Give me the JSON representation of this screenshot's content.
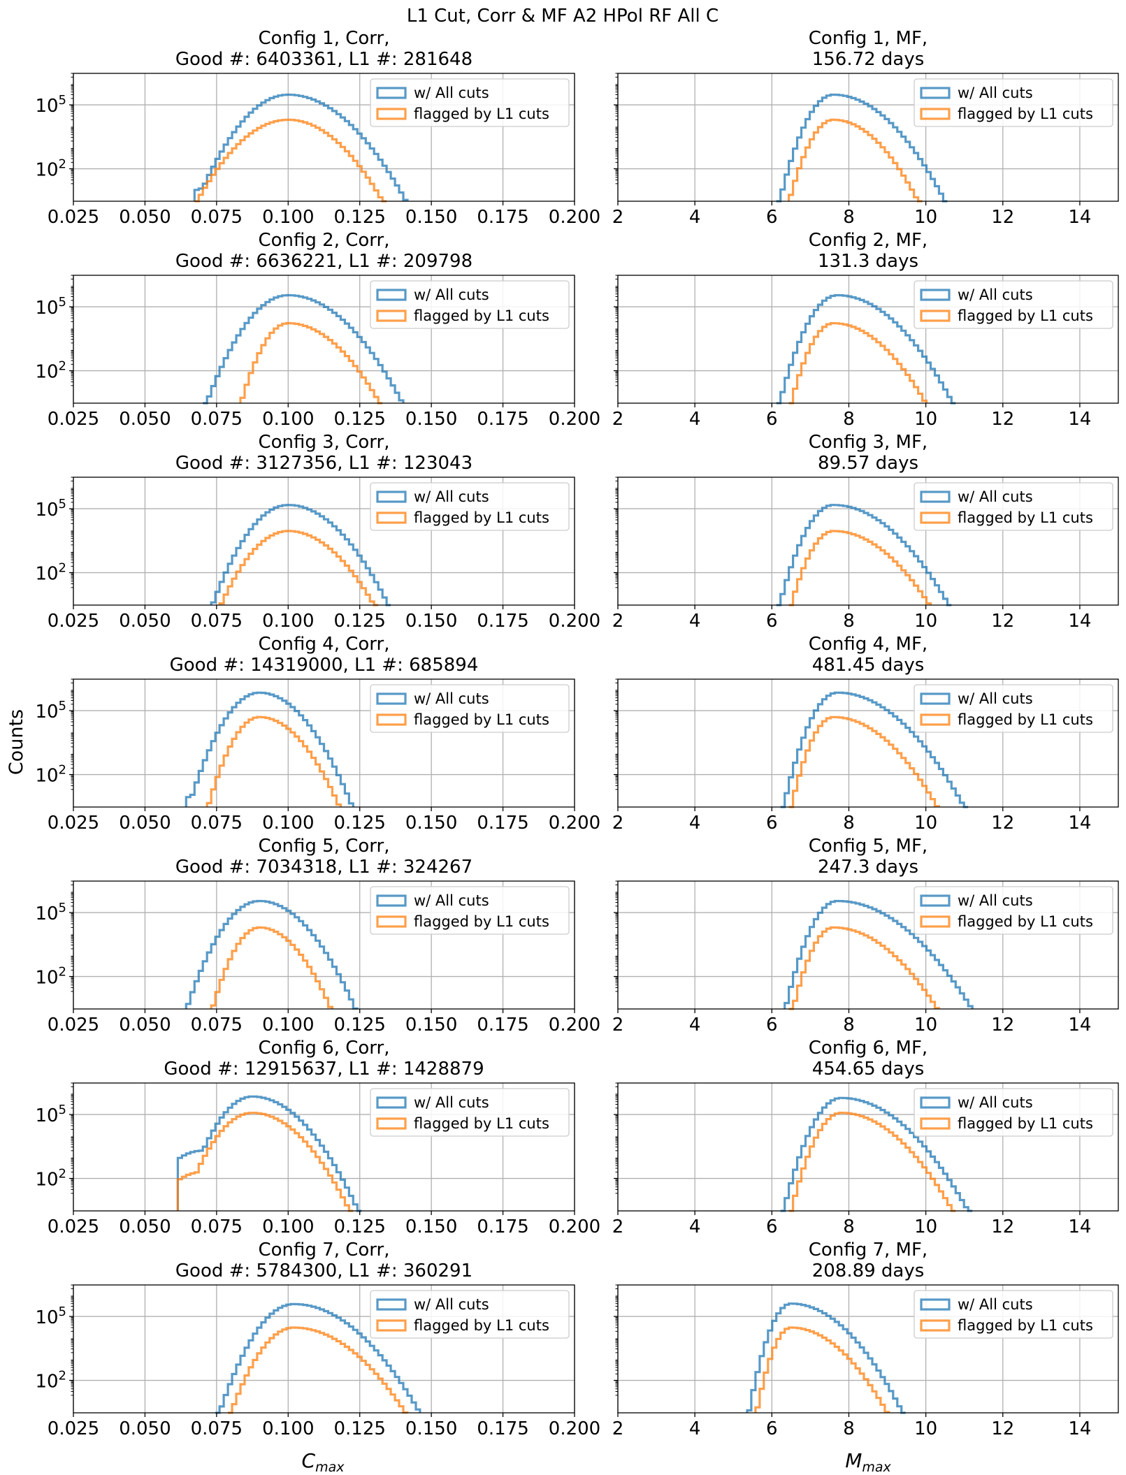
{
  "figure_title": "L1 Cut, Corr & MF A2 HPol RF All C",
  "ylabel": "Counts",
  "xlabel_left": "C",
  "xlabel_left_sub": "max",
  "xlabel_right": "M",
  "xlabel_right_sub": "max",
  "legend": [
    "w/ All cuts",
    "flagged by L1 cuts"
  ],
  "colors": {
    "all": "#1f77b4",
    "l1": "#ff7f0e"
  },
  "chart_data": [
    {
      "type": "histogram",
      "col": "corr",
      "title_line1": "Config 1, Corr,",
      "title_line2": "Good #: 6403361, L1 #: 281648",
      "xlim": [
        0.025,
        0.2
      ],
      "xticks": [
        "0.025",
        "0.050",
        "0.075",
        "0.100",
        "0.125",
        "0.150",
        "0.175",
        "0.200"
      ],
      "yscale": "log",
      "yticks": [
        "10^2",
        "10^5"
      ],
      "ylim": [
        3,
        3000000
      ],
      "grid": true,
      "legend": "upper right",
      "series": [
        {
          "name": "w/ All cuts",
          "start": 0.0682,
          "end": 0.1412,
          "peak_x": 0.1,
          "peak": 300000,
          "bump": {
            "x": 0.075,
            "v": 15
          }
        },
        {
          "name": "flagged by L1 cuts",
          "start": 0.0682,
          "end": 0.133,
          "peak_x": 0.1,
          "peak": 20000
        }
      ]
    },
    {
      "type": "histogram",
      "col": "mf",
      "title_line1": "Config 1, MF,",
      "title_line2": "156.72 days",
      "xlim": [
        2,
        15
      ],
      "xticks": [
        "2",
        "4",
        "6",
        "8",
        "10",
        "12",
        "14"
      ],
      "yscale": "log",
      "ylim": [
        3,
        3000000
      ],
      "grid": true,
      "legend": "upper right",
      "series": [
        {
          "name": "w/ All cuts",
          "start": 6.2,
          "end": 10.5,
          "peak_x": 7.6,
          "peak": 300000
        },
        {
          "name": "flagged by L1 cuts",
          "start": 6.45,
          "end": 9.8,
          "peak_x": 7.6,
          "peak": 20000
        }
      ]
    },
    {
      "type": "histogram",
      "col": "corr",
      "title_line1": "Config 2, Corr,",
      "title_line2": "Good #: 6636221, L1 #: 209798",
      "xlim": [
        0.025,
        0.2
      ],
      "xticks": [
        "0.025",
        "0.050",
        "0.075",
        "0.100",
        "0.125",
        "0.150",
        "0.175",
        "0.200"
      ],
      "yscale": "log",
      "yticks": [
        "10^2",
        "10^5"
      ],
      "ylim": [
        3,
        3000000
      ],
      "grid": true,
      "legend": "upper right",
      "series": [
        {
          "name": "w/ All cuts",
          "start": 0.0715,
          "end": 0.14,
          "peak_x": 0.1,
          "peak": 350000
        },
        {
          "name": "flagged by L1 cuts",
          "start": 0.0835,
          "end": 0.132,
          "peak_x": 0.1,
          "peak": 17000
        }
      ]
    },
    {
      "type": "histogram",
      "col": "mf",
      "title_line1": "Config 2, MF,",
      "title_line2": "131.3 days",
      "xlim": [
        2,
        15
      ],
      "xticks": [
        "2",
        "4",
        "6",
        "8",
        "10",
        "12",
        "14"
      ],
      "yscale": "log",
      "ylim": [
        3,
        3000000
      ],
      "grid": true,
      "legend": "upper right",
      "series": [
        {
          "name": "w/ All cuts",
          "start": 6.2,
          "end": 10.7,
          "peak_x": 7.7,
          "peak": 350000
        },
        {
          "name": "flagged by L1 cuts",
          "start": 6.5,
          "end": 10.0,
          "peak_x": 7.6,
          "peak": 17000
        }
      ]
    },
    {
      "type": "histogram",
      "col": "corr",
      "title_line1": "Config 3, Corr,",
      "title_line2": "Good #: 3127356, L1 #: 123043",
      "xlim": [
        0.025,
        0.2
      ],
      "xticks": [
        "0.025",
        "0.050",
        "0.075",
        "0.100",
        "0.125",
        "0.150",
        "0.175",
        "0.200"
      ],
      "yscale": "log",
      "yticks": [
        "10^2",
        "10^5"
      ],
      "ylim": [
        3,
        3000000
      ],
      "grid": true,
      "legend": "upper right",
      "series": [
        {
          "name": "w/ All cuts",
          "start": 0.0735,
          "end": 0.135,
          "peak_x": 0.1,
          "peak": 150000
        },
        {
          "name": "flagged by L1 cuts",
          "start": 0.0765,
          "end": 0.13,
          "peak_x": 0.1,
          "peak": 9000
        }
      ]
    },
    {
      "type": "histogram",
      "col": "mf",
      "title_line1": "Config 3, MF,",
      "title_line2": "89.57 days",
      "xlim": [
        2,
        15
      ],
      "xticks": [
        "2",
        "4",
        "6",
        "8",
        "10",
        "12",
        "14"
      ],
      "yscale": "log",
      "ylim": [
        3,
        3000000
      ],
      "grid": true,
      "legend": "upper right",
      "series": [
        {
          "name": "w/ All cuts",
          "start": 6.2,
          "end": 10.6,
          "peak_x": 7.6,
          "peak": 150000
        },
        {
          "name": "flagged by L1 cuts",
          "start": 6.5,
          "end": 10.1,
          "peak_x": 7.6,
          "peak": 9000
        }
      ]
    },
    {
      "type": "histogram",
      "col": "corr",
      "title_line1": "Config 4, Corr,",
      "title_line2": "Good #: 14319000, L1 #: 685894",
      "xlim": [
        0.025,
        0.2
      ],
      "xticks": [
        "0.025",
        "0.050",
        "0.075",
        "0.100",
        "0.125",
        "0.150",
        "0.175",
        "0.200"
      ],
      "yscale": "log",
      "yticks": [
        "10^2",
        "10^5"
      ],
      "ylim": [
        3,
        3000000
      ],
      "grid": true,
      "legend": "upper right",
      "series": [
        {
          "name": "w/ All cuts",
          "start": 0.0652,
          "end": 0.1225,
          "peak_x": 0.09,
          "peak": 700000,
          "bump": {
            "x": 0.07,
            "v": 12
          }
        },
        {
          "name": "flagged by L1 cuts",
          "start": 0.072,
          "end": 0.118,
          "peak_x": 0.09,
          "peak": 50000
        }
      ]
    },
    {
      "type": "histogram",
      "col": "mf",
      "title_line1": "Config 4, MF,",
      "title_line2": "481.45 days",
      "xlim": [
        2,
        15
      ],
      "xticks": [
        "2",
        "4",
        "6",
        "8",
        "10",
        "12",
        "14"
      ],
      "yscale": "log",
      "ylim": [
        3,
        3000000
      ],
      "grid": true,
      "legend": "upper right",
      "series": [
        {
          "name": "w/ All cuts",
          "start": 6.3,
          "end": 11.0,
          "peak_x": 7.7,
          "peak": 700000
        },
        {
          "name": "flagged by L1 cuts",
          "start": 6.5,
          "end": 10.3,
          "peak_x": 7.6,
          "peak": 50000
        }
      ]
    },
    {
      "type": "histogram",
      "col": "corr",
      "title_line1": "Config 5, Corr,",
      "title_line2": "Good #: 7034318, L1 #: 324267",
      "xlim": [
        0.025,
        0.2
      ],
      "xticks": [
        "0.025",
        "0.050",
        "0.075",
        "0.100",
        "0.125",
        "0.150",
        "0.175",
        "0.200"
      ],
      "yscale": "log",
      "yticks": [
        "10^2",
        "10^5"
      ],
      "ylim": [
        3,
        3000000
      ],
      "grid": true,
      "legend": "upper right",
      "series": [
        {
          "name": "w/ All cuts",
          "start": 0.0645,
          "end": 0.1235,
          "peak_x": 0.09,
          "peak": 350000
        },
        {
          "name": "flagged by L1 cuts",
          "start": 0.0735,
          "end": 0.115,
          "peak_x": 0.09,
          "peak": 20000
        }
      ]
    },
    {
      "type": "histogram",
      "col": "mf",
      "title_line1": "Config 5, MF,",
      "title_line2": "247.3 days",
      "xlim": [
        2,
        15
      ],
      "xticks": [
        "2",
        "4",
        "6",
        "8",
        "10",
        "12",
        "14"
      ],
      "yscale": "log",
      "ylim": [
        3,
        3000000
      ],
      "grid": true,
      "legend": "upper right",
      "series": [
        {
          "name": "w/ All cuts",
          "start": 6.35,
          "end": 11.2,
          "peak_x": 7.7,
          "peak": 350000
        },
        {
          "name": "flagged by L1 cuts",
          "start": 6.55,
          "end": 10.3,
          "peak_x": 7.6,
          "peak": 20000
        }
      ]
    },
    {
      "type": "histogram",
      "col": "corr",
      "title_line1": "Config 6, Corr,",
      "title_line2": "Good #: 12915637, L1 #: 1428879",
      "xlim": [
        0.025,
        0.2
      ],
      "xticks": [
        "0.025",
        "0.050",
        "0.075",
        "0.100",
        "0.125",
        "0.150",
        "0.175",
        "0.200"
      ],
      "yscale": "log",
      "yticks": [
        "10^2",
        "10^5"
      ],
      "ylim": [
        3,
        3000000
      ],
      "grid": true,
      "legend": "upper right",
      "series": [
        {
          "name": "w/ All cuts",
          "start": 0.0625,
          "end": 0.1245,
          "peak_x": 0.0875,
          "peak": 700000,
          "bump": {
            "x": 0.07,
            "v": 2000
          }
        },
        {
          "name": "flagged by L1 cuts",
          "start": 0.0625,
          "end": 0.1215,
          "peak_x": 0.0875,
          "peak": 120000,
          "bump": {
            "x": 0.07,
            "v": 200
          }
        }
      ]
    },
    {
      "type": "histogram",
      "col": "mf",
      "title_line1": "Config 6, MF,",
      "title_line2": "454.65 days",
      "xlim": [
        2,
        15
      ],
      "xticks": [
        "2",
        "4",
        "6",
        "8",
        "10",
        "12",
        "14"
      ],
      "yscale": "log",
      "ylim": [
        3,
        3000000
      ],
      "grid": true,
      "legend": "upper right",
      "series": [
        {
          "name": "w/ All cuts",
          "start": 6.3,
          "end": 11.1,
          "peak_x": 7.8,
          "peak": 600000
        },
        {
          "name": "flagged by L1 cuts",
          "start": 6.5,
          "end": 10.7,
          "peak_x": 7.8,
          "peak": 120000
        }
      ]
    },
    {
      "type": "histogram",
      "col": "corr",
      "title_line1": "Config 7, Corr,",
      "title_line2": "Good #: 5784300, L1 #: 360291",
      "xlim": [
        0.025,
        0.2
      ],
      "xticks": [
        "0.025",
        "0.050",
        "0.075",
        "0.100",
        "0.125",
        "0.150",
        "0.175",
        "0.200"
      ],
      "yscale": "log",
      "yticks": [
        "10^2",
        "10^5"
      ],
      "ylim": [
        3,
        3000000
      ],
      "grid": true,
      "legend": "upper right",
      "series": [
        {
          "name": "w/ All cuts",
          "start": 0.076,
          "end": 0.146,
          "peak_x": 0.102,
          "peak": 380000
        },
        {
          "name": "flagged by L1 cuts",
          "start": 0.08,
          "end": 0.141,
          "peak_x": 0.102,
          "peak": 30000
        }
      ]
    },
    {
      "type": "histogram",
      "col": "mf",
      "title_line1": "Config 7, MF,",
      "title_line2": "208.89 days",
      "xlim": [
        2,
        15
      ],
      "xticks": [
        "2",
        "4",
        "6",
        "8",
        "10",
        "12",
        "14"
      ],
      "yscale": "log",
      "ylim": [
        3,
        3000000
      ],
      "grid": true,
      "legend": "upper right",
      "series": [
        {
          "name": "w/ All cuts",
          "start": 5.4,
          "end": 9.4,
          "peak_x": 6.5,
          "peak": 400000
        },
        {
          "name": "flagged by L1 cuts",
          "start": 5.6,
          "end": 9.0,
          "peak_x": 6.5,
          "peak": 30000
        }
      ]
    }
  ]
}
